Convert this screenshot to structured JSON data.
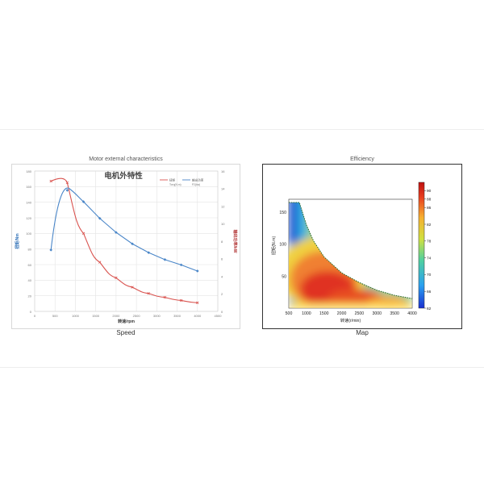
{
  "left_panel": {
    "header": "Motor external characteristics",
    "caption": "Speed"
  },
  "right_panel": {
    "header": "Efficiency",
    "caption": "Map"
  },
  "chart_data": [
    {
      "type": "line",
      "title": "电机外特性",
      "xlabel": "转速/rpm",
      "ylabel_left": "扭矩/Nm",
      "ylabel_right": "输出功率/kW",
      "xlim": [
        0,
        4500
      ],
      "x_ticks": [
        "0",
        "500",
        "1000",
        "1500",
        "2000",
        "2500",
        "3000",
        "3500",
        "4000",
        "4500"
      ],
      "ylim_left": [
        0,
        180
      ],
      "y_ticks_left": [
        "0",
        "20",
        "40",
        "60",
        "80",
        "100",
        "120",
        "140",
        "160",
        "180"
      ],
      "ylim_right": [
        0,
        16
      ],
      "y_ticks_right": [
        "0",
        "2",
        "4",
        "6",
        "8",
        "10",
        "12",
        "14",
        "16"
      ],
      "grid": true,
      "legend_position": "top-right",
      "series": [
        {
          "name": "扭矩",
          "legend_sub": "Torq(N.m)",
          "axis": "left",
          "color": "#d9534f",
          "x": [
            400,
            800,
            1200,
            1600,
            2000,
            2400,
            2800,
            3200,
            3600,
            4000
          ],
          "y": [
            167,
            165,
            100,
            63,
            43,
            31,
            23,
            18,
            14,
            11
          ]
        },
        {
          "name": "输出功率",
          "legend_sub": "P2(kw)",
          "axis": "right",
          "color": "#4a86c8",
          "x": [
            400,
            800,
            1200,
            1600,
            2000,
            2400,
            2800,
            3200,
            3600,
            4000
          ],
          "y": [
            7.0,
            13.8,
            12.5,
            10.6,
            9.0,
            7.7,
            6.7,
            5.9,
            5.3,
            4.6
          ]
        }
      ]
    },
    {
      "type": "heatmap",
      "xlabel": "转速(r/min)",
      "ylabel": "扭矩(N.m)",
      "xlim": [
        500,
        4000
      ],
      "x_ticks": [
        "500",
        "1000",
        "1500",
        "2000",
        "2500",
        "3000",
        "3500",
        "4000"
      ],
      "ylim": [
        0,
        170
      ],
      "y_ticks": [
        "50",
        "100",
        "150"
      ],
      "colorbar_ticks": [
        "62",
        "66",
        "70",
        "74",
        "78",
        "82",
        "86",
        "88",
        "90"
      ],
      "colorbar_range": [
        62,
        92
      ],
      "envelope": {
        "x": [
          500,
          800,
          1000,
          1200,
          1500,
          2000,
          2500,
          3000,
          3500,
          4000
        ],
        "y": [
          165,
          165,
          130,
          105,
          80,
          55,
          40,
          28,
          20,
          15
        ]
      },
      "peak_region": {
        "x": 1500,
        "y": 30,
        "value": 90
      }
    }
  ]
}
